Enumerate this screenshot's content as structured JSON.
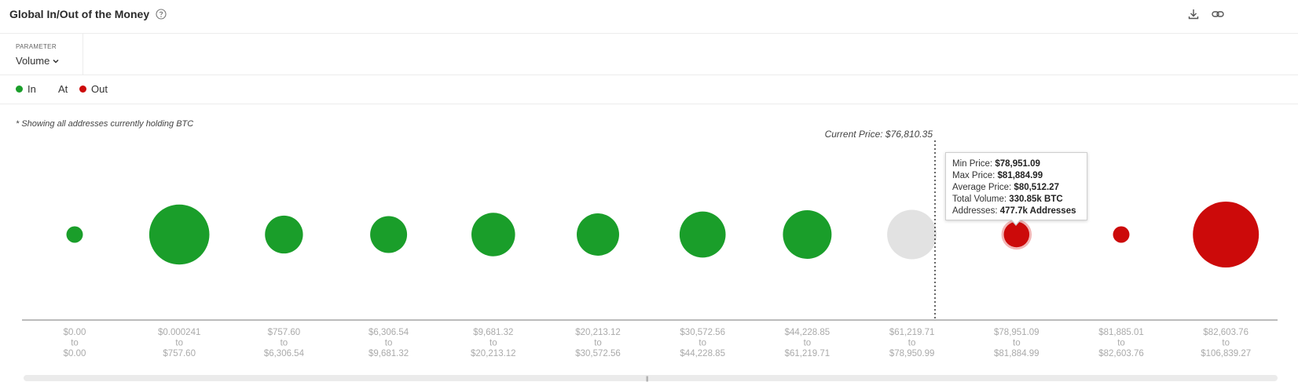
{
  "header": {
    "title": "Global In/Out of the Money"
  },
  "parameter": {
    "label": "PARAMETER",
    "value": "Volume"
  },
  "legend": {
    "in": "In",
    "at": "At",
    "out": "Out"
  },
  "note": "* Showing all addresses currently holding BTC",
  "colors": {
    "in": "#1a9e2a",
    "at": "#e2e2e2",
    "out": "#cc0a0a"
  },
  "chart_data": {
    "type": "bubble",
    "current_price_label": "Current Price: $76,810.35",
    "current_price": 76810.35,
    "categories": [
      {
        "min": "$0.00",
        "to": "to",
        "max": "$0.00",
        "status": "in",
        "size": 1
      },
      {
        "min": "$0.000241",
        "to": "to",
        "max": "$757.60",
        "status": "in",
        "size": 13.3
      },
      {
        "min": "$757.60",
        "to": "to",
        "max": "$6,306.54",
        "status": "in",
        "size": 5.3
      },
      {
        "min": "$6,306.54",
        "to": "to",
        "max": "$9,681.32",
        "status": "in",
        "size": 5.0
      },
      {
        "min": "$9,681.32",
        "to": "to",
        "max": "$20,213.12",
        "status": "in",
        "size": 7.0
      },
      {
        "min": "$20,213.12",
        "to": "to",
        "max": "$30,572.56",
        "status": "in",
        "size": 6.6
      },
      {
        "min": "$30,572.56",
        "to": "to",
        "max": "$44,228.85",
        "status": "in",
        "size": 7.8
      },
      {
        "min": "$44,228.85",
        "to": "to",
        "max": "$61,219.71",
        "status": "in",
        "size": 8.7
      },
      {
        "min": "$61,219.71",
        "to": "to",
        "max": "$78,950.99",
        "status": "at",
        "size": 9.0
      },
      {
        "min": "$78,951.09",
        "to": "to",
        "max": "$81,884.99",
        "status": "out",
        "size": 2.4
      },
      {
        "min": "$81,885.01",
        "to": "to",
        "max": "$82,603.76",
        "status": "out",
        "size": 1.0
      },
      {
        "min": "$82,603.76",
        "to": "to",
        "max": "$106,839.27",
        "status": "out",
        "size": 16.0
      }
    ],
    "highlighted_index": 9
  },
  "tooltip": {
    "min_label": "Min Price:",
    "min_value": "$78,951.09",
    "max_label": "Max Price:",
    "max_value": "$81,884.99",
    "avg_label": "Average Price:",
    "avg_value": "$80,512.27",
    "vol_label": "Total Volume:",
    "vol_value": "330.85k BTC",
    "addr_label": "Addresses:",
    "addr_value": "477.7k Addresses"
  }
}
